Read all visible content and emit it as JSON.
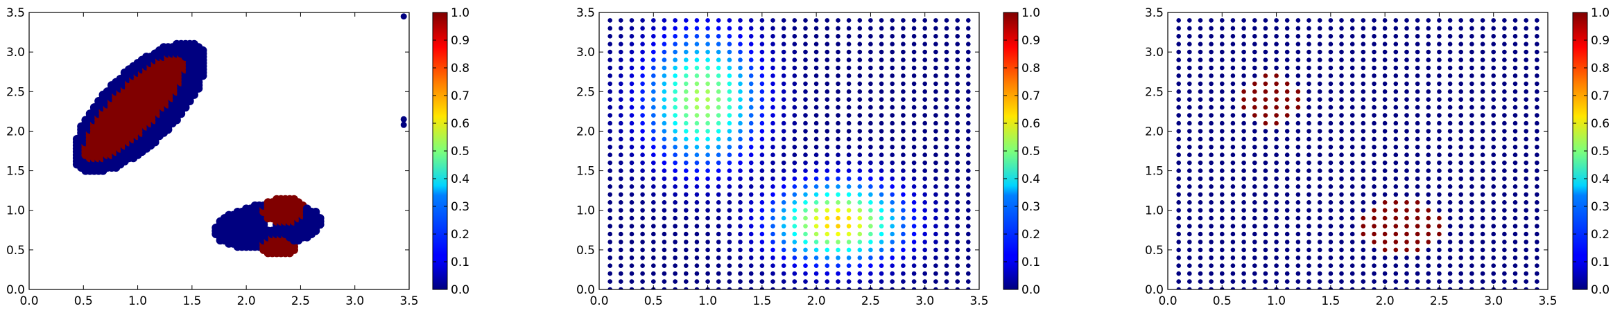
{
  "colormap": "jet",
  "colors": {
    "axes": "#000000",
    "background": "#ffffff",
    "low": "#00007f",
    "high": "#7f0000"
  },
  "chart_data": [
    {
      "type": "scatter",
      "name_hint": "left",
      "xlim": [
        0,
        3.5
      ],
      "ylim": [
        0,
        3.5
      ],
      "xticks": [
        "0.0",
        "0.5",
        "1.0",
        "1.5",
        "2.0",
        "2.5",
        "3.0",
        "3.5"
      ],
      "yticks": [
        "0.0",
        "0.5",
        "1.0",
        "1.5",
        "2.0",
        "2.5",
        "3.0",
        "3.5"
      ],
      "colorbar": {
        "range": [
          0,
          1
        ],
        "ticks": [
          "0.0",
          "0.1",
          "0.2",
          "0.3",
          "0.4",
          "0.5",
          "0.6",
          "0.7",
          "0.8",
          "0.9",
          "1.0"
        ]
      },
      "grid": false,
      "clusters": [
        {
          "shape": "ellipse",
          "center": [
            1.02,
            2.3
          ],
          "semi_axes": [
            0.38,
            0.95
          ],
          "rotation_deg": -33,
          "value": 0.0
        },
        {
          "shape": "ellipse",
          "center": [
            0.98,
            2.3
          ],
          "semi_axes": [
            0.24,
            0.78
          ],
          "rotation_deg": -33,
          "value": 1.0
        },
        {
          "shape": "ellipse",
          "center": [
            2.2,
            0.8
          ],
          "semi_axes": [
            0.5,
            0.28
          ],
          "rotation_deg": 10,
          "value": 0.0
        },
        {
          "shape": "ellipse",
          "center": [
            2.35,
            1.0
          ],
          "semi_axes": [
            0.2,
            0.16
          ],
          "rotation_deg": 0,
          "value": 1.0
        },
        {
          "shape": "ellipse",
          "center": [
            2.3,
            0.55
          ],
          "semi_axes": [
            0.16,
            0.12
          ],
          "rotation_deg": 0,
          "value": 1.0
        },
        {
          "shape": "ellipse",
          "center": [
            2.22,
            0.82
          ],
          "semi_axes": [
            0.05,
            0.06
          ],
          "rotation_deg": 0,
          "value": "hole"
        }
      ],
      "points": [
        {
          "x": 3.45,
          "y": 3.45,
          "value": 0.0
        },
        {
          "x": 3.45,
          "y": 2.15,
          "value": 0.0
        },
        {
          "x": 3.45,
          "y": 2.08,
          "value": 0.0
        }
      ]
    },
    {
      "type": "scatter",
      "name_hint": "middle",
      "xlim": [
        0,
        3.5
      ],
      "ylim": [
        0,
        3.5
      ],
      "xticks": [
        "0.0",
        "0.5",
        "1.0",
        "1.5",
        "2.0",
        "2.5",
        "3.0",
        "3.5"
      ],
      "yticks": [
        "0.0",
        "0.5",
        "1.0",
        "1.5",
        "2.0",
        "2.5",
        "3.0",
        "3.5"
      ],
      "colorbar": {
        "range": [
          0,
          1
        ],
        "ticks": [
          "0.0",
          "0.1",
          "0.2",
          "0.3",
          "0.4",
          "0.5",
          "0.6",
          "0.7",
          "0.8",
          "0.9",
          "1.0"
        ]
      },
      "grid": false,
      "lattice": {
        "x_start": 0.1,
        "x_end": 3.4,
        "y_start": 0.0,
        "y_end": 3.4,
        "step": 0.1
      },
      "field": [
        {
          "center": [
            0.95,
            2.4
          ],
          "sigma": [
            0.35,
            0.55
          ],
          "peak": 0.55
        },
        {
          "center": [
            2.2,
            0.85
          ],
          "sigma": [
            0.4,
            0.33
          ],
          "peak": 0.68
        }
      ]
    },
    {
      "type": "scatter",
      "name_hint": "right",
      "xlim": [
        0,
        3.5
      ],
      "ylim": [
        0,
        3.5
      ],
      "xticks": [
        "0.0",
        "0.5",
        "1.0",
        "1.5",
        "2.0",
        "2.5",
        "3.0",
        "3.5"
      ],
      "yticks": [
        "0.0",
        "0.5",
        "1.0",
        "1.5",
        "2.0",
        "2.5",
        "3.0",
        "3.5"
      ],
      "colorbar": {
        "range": [
          0,
          1
        ],
        "ticks": [
          "0.0",
          "0.1",
          "0.2",
          "0.3",
          "0.4",
          "0.5",
          "0.6",
          "0.7",
          "0.8",
          "0.9",
          "1.0"
        ]
      },
      "grid": false,
      "lattice": {
        "x_start": 0.1,
        "x_end": 3.4,
        "y_start": 0.0,
        "y_end": 3.4,
        "step": 0.1
      },
      "hot_regions": [
        {
          "center": [
            0.95,
            2.4
          ],
          "radius": 0.32,
          "value": 1.0
        },
        {
          "center": [
            2.15,
            0.8
          ],
          "radius": 0.38,
          "value": 1.0
        }
      ]
    }
  ]
}
